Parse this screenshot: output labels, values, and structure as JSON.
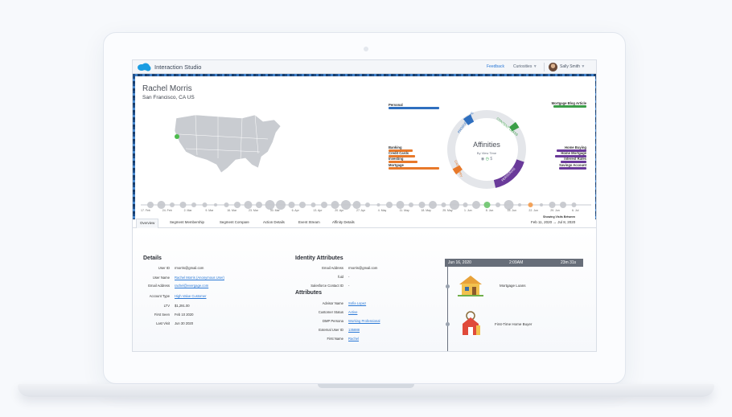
{
  "window": {
    "app_title": "Interaction Studio",
    "feedback": "Feedback",
    "curiosities": "Curiosities",
    "user_name": "Sally Smith"
  },
  "profile": {
    "name": "Rachel Morris",
    "location": "San Francisco, CA US"
  },
  "affinities": {
    "title": "Affinities",
    "subtitle": "By View Time",
    "ring_labels": [
      "PRODUCT TYPE",
      "CONTENT CLASS",
      "CATEGORY",
      "PERSONAS"
    ],
    "left_items": [
      {
        "label": "Personal",
        "color": "#2f6fbf",
        "fraction": 0.95
      },
      {
        "label": "Banking",
        "color": "#e8792a",
        "fraction": 0.45
      },
      {
        "label": "Credit Cards",
        "color": "#e8792a",
        "fraction": 0.5
      },
      {
        "label": "Investing",
        "color": "#e8792a",
        "fraction": 0.55
      },
      {
        "label": "Mortgage",
        "color": "#e8792a",
        "fraction": 0.95
      }
    ],
    "right_items": [
      {
        "label": "Mortgage Blog Article",
        "color": "#3b9e48",
        "fraction": 0.9
      },
      {
        "label": "Home Buying",
        "color": "#6a3a9a",
        "fraction": 0.8
      },
      {
        "label": "Home Mortgage",
        "color": "#6a3a9a",
        "fraction": 0.85
      },
      {
        "label": "Interest Rates",
        "color": "#6a3a9a",
        "fraction": 0.7
      },
      {
        "label": "Savings Account",
        "color": "#6a3a9a",
        "fraction": 0.75
      }
    ]
  },
  "timeline": {
    "dates": [
      "17. Feb",
      "24. Feb",
      "2. Mar",
      "9. Mar",
      "16. Mar",
      "23. Mar",
      "30. Mar",
      "6. Apr",
      "13. Apr",
      "20. Apr",
      "27. Apr",
      "4. May",
      "11. May",
      "18. May",
      "25. May",
      "1. Jun",
      "8. Jun",
      "15. Jun",
      "22. Jun",
      "29. Jun",
      "6. Jul"
    ]
  },
  "tabs": [
    "Overview",
    "Segment Membership",
    "Segment Compare",
    "Action Details",
    "Event Stream",
    "Affinity Details"
  ],
  "range": {
    "label": "Showing Visits Between",
    "value": "Feb 11, 2020 → Jul 8, 2020"
  },
  "details": {
    "title": "Details",
    "rows": [
      {
        "label": "User ID",
        "value": "rmorris@gmail.com",
        "link": false
      },
      {
        "label": "User Name",
        "value": "Rachel Morris (Anonymous User)",
        "link": true
      },
      {
        "label": "Email Address",
        "value": "rachel@evergage.com",
        "link": true
      },
      {
        "label": "Account Type",
        "value": "High Value Customer",
        "link": true
      },
      {
        "label": "LTV",
        "value": "$1,291.00",
        "link": false
      },
      {
        "label": "First Seen",
        "value": "Feb 10 2020",
        "link": false
      },
      {
        "label": "Last Visit",
        "value": "Jun 30 2020",
        "link": false
      }
    ]
  },
  "identity": {
    "title": "Identity Attributes",
    "rows": [
      {
        "label": "Email Address",
        "value": "rmorris@gmail.com"
      },
      {
        "label": "fuid",
        "value": "-"
      },
      {
        "label": "Salesforce Contact ID",
        "value": "-"
      }
    ]
  },
  "attributes": {
    "title": "Attributes",
    "rows": [
      {
        "label": "Advisor Name",
        "value": "Sofia Lopez",
        "link": true
      },
      {
        "label": "Customer Status",
        "value": "Active",
        "link": true
      },
      {
        "label": "DMP Persona",
        "value": "Working Professional",
        "link": true
      },
      {
        "label": "External User ID",
        "value": "135888",
        "link": true
      },
      {
        "label": "First Name",
        "value": "Rachel",
        "link": true
      }
    ]
  },
  "journey": {
    "date": "Jun 16, 2020",
    "time": "2:09AM",
    "duration": "23m 31s",
    "events": [
      "Mortgage Loans",
      "First-Time Home Buyer"
    ]
  }
}
